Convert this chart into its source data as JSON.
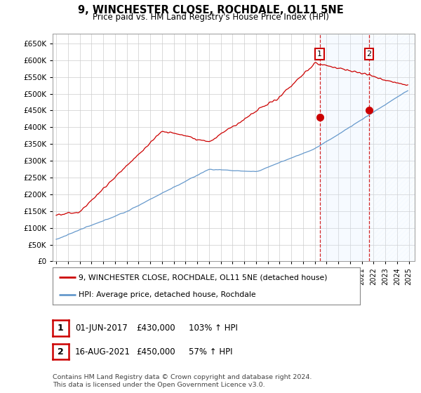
{
  "title": "9, WINCHESTER CLOSE, ROCHDALE, OL11 5NE",
  "subtitle": "Price paid vs. HM Land Registry's House Price Index (HPI)",
  "ylim": [
    0,
    680000
  ],
  "yticks": [
    0,
    50000,
    100000,
    150000,
    200000,
    250000,
    300000,
    350000,
    400000,
    450000,
    500000,
    550000,
    600000,
    650000
  ],
  "sale1_year": 2017.42,
  "sale1_price": 430000,
  "sale2_year": 2021.62,
  "sale2_price": 450000,
  "red_color": "#cc0000",
  "blue_color": "#6699cc",
  "shade_blue": "#ddeeff",
  "legend_items": [
    "9, WINCHESTER CLOSE, ROCHDALE, OL11 5NE (detached house)",
    "HPI: Average price, detached house, Rochdale"
  ],
  "table_rows": [
    [
      "1",
      "01-JUN-2017",
      "£430,000",
      "103% ↑ HPI"
    ],
    [
      "2",
      "16-AUG-2021",
      "£450,000",
      "57% ↑ HPI"
    ]
  ],
  "footnote": "Contains HM Land Registry data © Crown copyright and database right 2024.\nThis data is licensed under the Open Government Licence v3.0.",
  "bg_color": "#ffffff",
  "grid_color": "#cccccc",
  "xlim_left": 1994.7,
  "xlim_right": 2025.5
}
